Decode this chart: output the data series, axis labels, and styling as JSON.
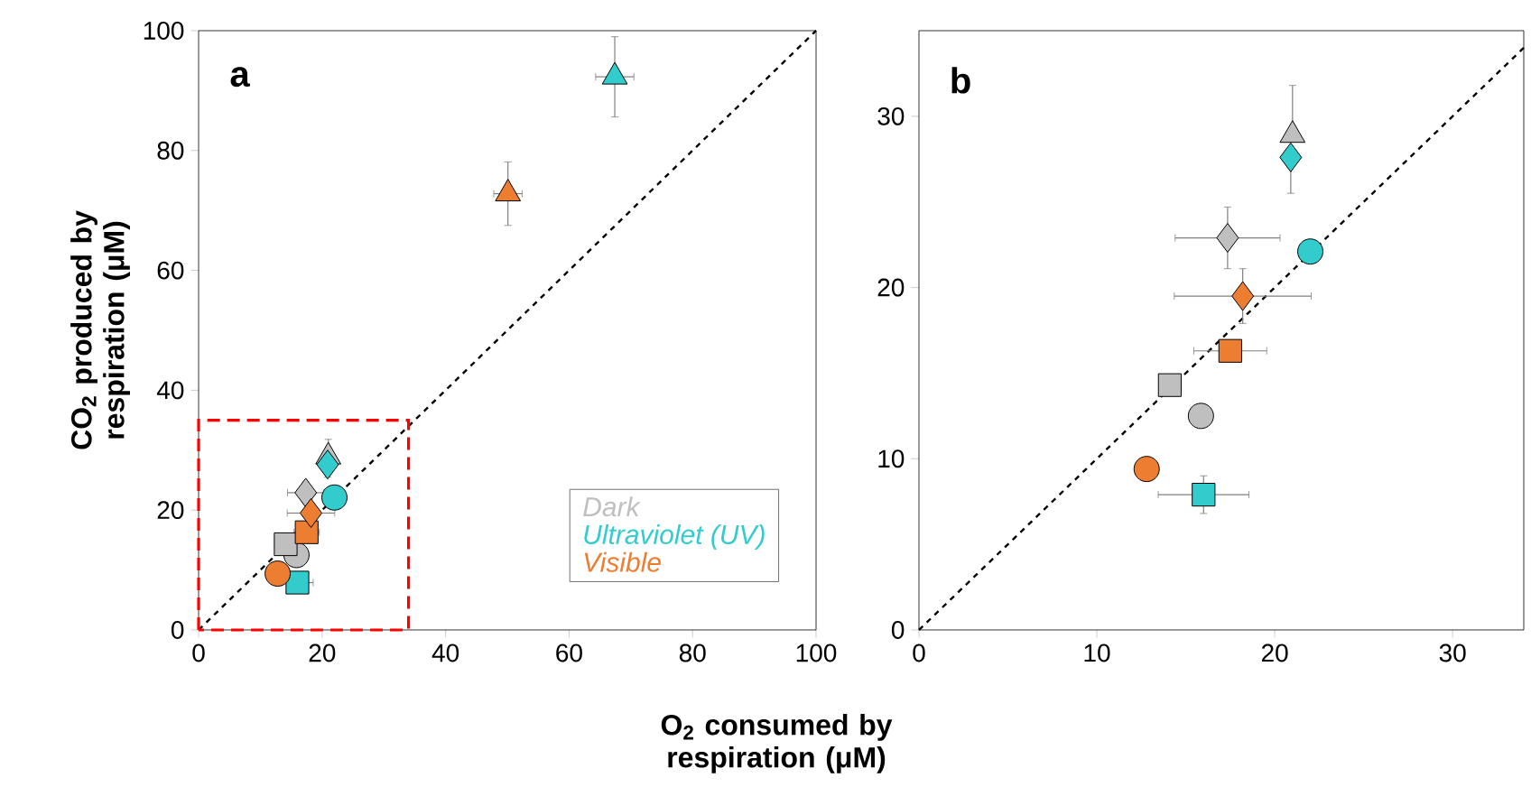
{
  "chart_data": [
    {
      "type": "scatter",
      "title": "a",
      "xlabel": "O$_{2}$ consumed by respiration (μM)",
      "ylabel": "CO$_{2}$ produced by respiration (μM)",
      "xlim": [
        0,
        100
      ],
      "ylim": [
        0,
        100
      ],
      "xticks": [
        0,
        20,
        40,
        60,
        80,
        100
      ],
      "yticks": [
        0,
        20,
        40,
        60,
        80,
        100
      ],
      "legend": "bottom right",
      "series": [
        {
          "color": "#000000",
          "type": "line",
          "line_style": "dashed",
          "marker": "none",
          "x": [
            0,
            100
          ],
          "values": [
            0,
            100
          ]
        },
        {
          "name": "Dark",
          "color": "#bfbfbf",
          "marker": "circle",
          "x": [
            15.85
          ],
          "values": [
            12.5
          ]
        },
        {
          "color": "#bfbfbf",
          "marker": "square",
          "x": [
            14.1
          ],
          "values": [
            14.3
          ]
        },
        {
          "color": "#bfbfbf",
          "marker": "diamond",
          "x": [
            17.35
          ],
          "values": [
            22.9
          ],
          "errors": [
            1.8
          ],
          "xerrors": [
            2.95
          ]
        },
        {
          "color": "#bfbfbf",
          "marker": "triangle",
          "x": [
            21.0
          ],
          "values": [
            28.9
          ],
          "errors": [
            [
              28.9,
              31.8
            ]
          ]
        },
        {
          "name": "Ultraviolet (UV)",
          "color": "#33cccc",
          "marker": "circle",
          "x": [
            22.0
          ],
          "values": [
            22.1
          ]
        },
        {
          "color": "#33cccc",
          "marker": "square",
          "x": [
            16.0
          ],
          "values": [
            7.9
          ],
          "xerrors": [
            2.55
          ]
        },
        {
          "color": "#33cccc",
          "marker": "diamond",
          "x": [
            20.9
          ],
          "values": [
            27.6
          ],
          "errors": [
            [
              25.5,
              27.6
            ]
          ]
        },
        {
          "color": "#33cccc",
          "marker": "triangle",
          "x": [
            67.4
          ],
          "values": [
            92.3
          ],
          "errors": [
            6.7
          ],
          "xerrors": [
            3.1
          ]
        },
        {
          "name": "Visible",
          "color": "#ed7d31",
          "marker": "circle",
          "x": [
            12.8
          ],
          "values": [
            9.4
          ]
        },
        {
          "color": "#ed7d31",
          "marker": "square",
          "x": [
            17.5
          ],
          "values": [
            16.3
          ],
          "xerrors": [
            2.05
          ]
        },
        {
          "color": "#ed7d31",
          "marker": "diamond",
          "x": [
            18.2
          ],
          "values": [
            19.5
          ],
          "errors": [
            1.6
          ],
          "xerrors": [
            3.85
          ]
        },
        {
          "color": "#ed7d31",
          "marker": "triangle",
          "x": [
            50.1
          ],
          "values": [
            72.8
          ],
          "errors": [
            5.3
          ],
          "xerrors": [
            2.3
          ]
        }
      ]
    },
    {
      "type": "scatter",
      "title": "b",
      "xlim": [
        0,
        34
      ],
      "ylim": [
        0,
        35
      ],
      "xticks": [
        0,
        10,
        20,
        30
      ],
      "yticks": [
        0,
        10,
        20,
        30
      ],
      "series": [
        {
          "color": "#000000",
          "type": "line",
          "line_style": "dashed",
          "marker": "none",
          "x": [
            0,
            34
          ],
          "values": [
            0,
            34
          ]
        },
        {
          "color": "#bfbfbf",
          "marker": "circle",
          "x": [
            15.85
          ],
          "values": [
            12.5
          ]
        },
        {
          "color": "#bfbfbf",
          "marker": "square",
          "x": [
            14.1
          ],
          "values": [
            14.3
          ]
        },
        {
          "color": "#bfbfbf",
          "marker": "diamond",
          "x": [
            17.35
          ],
          "values": [
            22.9
          ],
          "errors": [
            1.8
          ],
          "xerrors": [
            2.95
          ]
        },
        {
          "color": "#bfbfbf",
          "marker": "triangle",
          "x": [
            21.0
          ],
          "values": [
            28.9
          ],
          "errors": [
            [
              28.9,
              31.8
            ]
          ]
        },
        {
          "color": "#33cccc",
          "marker": "circle",
          "x": [
            22.0
          ],
          "values": [
            22.1
          ]
        },
        {
          "color": "#33cccc",
          "marker": "square",
          "x": [
            16.0
          ],
          "values": [
            7.9
          ],
          "errors": [
            1.1
          ],
          "xerrors": [
            2.55
          ]
        },
        {
          "color": "#33cccc",
          "marker": "diamond",
          "x": [
            20.9
          ],
          "values": [
            27.6
          ],
          "errors": [
            [
              25.5,
              27.6
            ]
          ]
        },
        {
          "color": "#ed7d31",
          "marker": "circle",
          "x": [
            12.8
          ],
          "values": [
            9.4
          ]
        },
        {
          "color": "#ed7d31",
          "marker": "square",
          "x": [
            17.5
          ],
          "values": [
            16.3
          ],
          "xerrors": [
            2.05
          ]
        },
        {
          "color": "#ed7d31",
          "marker": "diamond",
          "x": [
            18.2
          ],
          "values": [
            19.5
          ],
          "errors": [
            1.6
          ],
          "xerrors": [
            3.85
          ]
        }
      ]
    }
  ]
}
